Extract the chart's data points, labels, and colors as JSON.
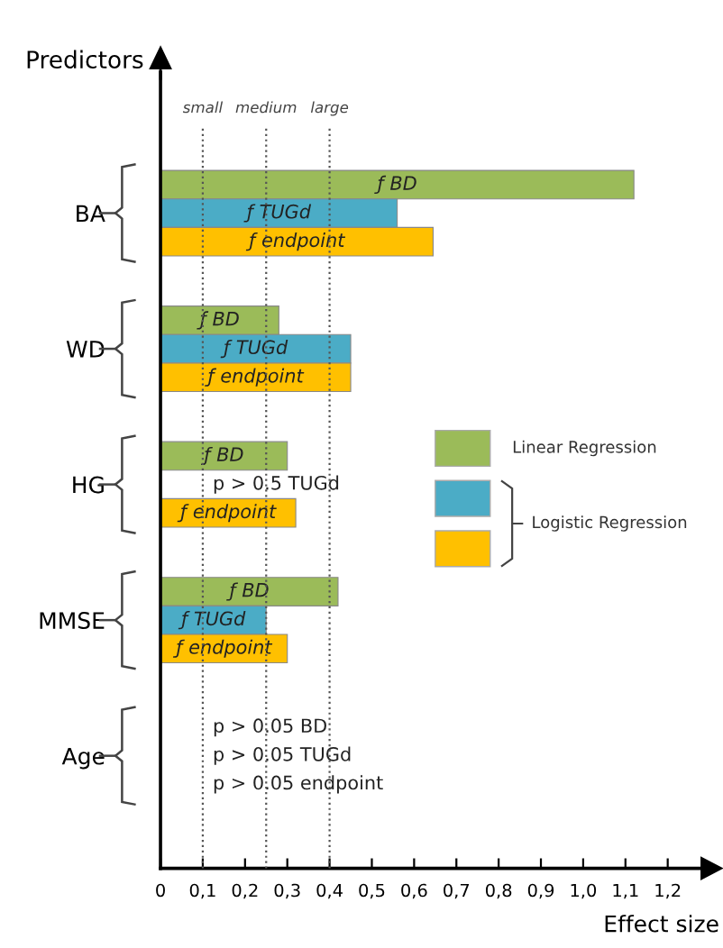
{
  "chart_data": {
    "type": "bar",
    "orientation": "horizontal",
    "ylabel": "Predictors",
    "xlabel": "Effect size",
    "categories": [
      "BA",
      "WD",
      "HG",
      "MMSE",
      "Age"
    ],
    "series": [
      {
        "name": "Linear Regression",
        "color": "#9bbb59",
        "values": [
          1.12,
          0.28,
          0.3,
          0.42,
          null
        ],
        "value_labels": [
          "ƒ BD",
          "ƒ BD",
          "ƒ BD",
          "ƒ BD",
          "p > 0.05 BD"
        ]
      },
      {
        "name": "Logistic Regression",
        "color": "#4bacc6",
        "values": [
          0.56,
          0.45,
          null,
          0.25,
          null
        ],
        "value_labels": [
          "ƒ TUGd",
          "ƒ TUGd",
          "p > 0.5 TUGd",
          "ƒ TUGd",
          "p > 0.05 TUGd"
        ]
      },
      {
        "color": "#ffc000",
        "values": [
          0.645,
          0.45,
          0.32,
          0.3,
          null
        ],
        "value_labels": [
          "ƒ endpoint",
          "ƒ endpoint",
          "ƒ endpoint",
          "ƒ endpoint",
          "p > 0.05 endpoint"
        ]
      }
    ],
    "xlim": [
      0,
      1.3
    ],
    "xticks": [
      0,
      {
        "value": 0.1,
        "label": "0,1"
      },
      {
        "value": 0.2,
        "label": "0,2"
      },
      {
        "value": 0.3,
        "label": "0,3"
      },
      {
        "value": 0.4,
        "label": "0,4"
      },
      {
        "value": 0.5,
        "label": "0,5"
      },
      {
        "value": 0.6,
        "label": "0,6"
      },
      {
        "value": 0.7,
        "label": "0,7"
      },
      {
        "value": 0.8,
        "label": "0,8"
      },
      {
        "value": 0.9,
        "label": "0,9"
      },
      {
        "value": 1.0,
        "label": "1,0"
      },
      {
        "value": 1.1,
        "label": "1,1"
      },
      {
        "value": 1.2,
        "label": "1,2"
      }
    ],
    "ref_lines": [
      {
        "axis": "x",
        "value": 0.1,
        "label": "small",
        "color": "#555555",
        "line_style": "dotted"
      },
      {
        "axis": "x",
        "value": 0.25,
        "label": "medium",
        "color": "#555555",
        "line_style": "dotted"
      },
      {
        "axis": "x",
        "value": 0.4,
        "label": "large",
        "color": "#555555",
        "line_style": "dotted"
      }
    ],
    "grid": false,
    "legend": "right"
  }
}
